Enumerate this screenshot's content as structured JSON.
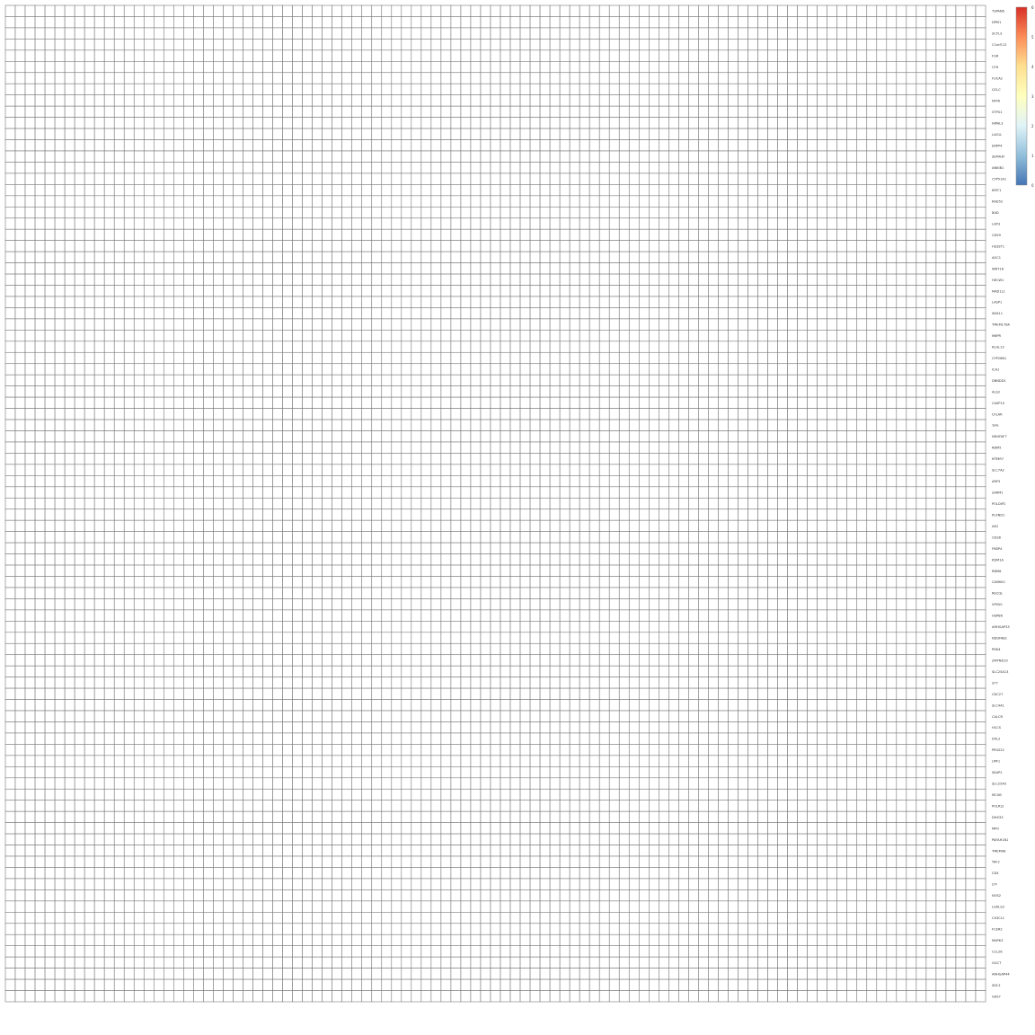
{
  "chart_data": {
    "type": "heatmap",
    "title": "",
    "xlabel": "",
    "ylabel": "",
    "rows": [
      "TSPAN6",
      "DPM1",
      "SCYL3",
      "C1orf112",
      "FGR",
      "CFH",
      "FUCA2",
      "GCLC",
      "NFYA",
      "STPG1",
      "NIPAL3",
      "LAS1L",
      "ENPP4",
      "SEMA3F",
      "ANKIB1",
      "CYP51A1",
      "KRIT1",
      "RAD52",
      "BAD",
      "LAP3",
      "CD99",
      "HS3ST1",
      "AOC1",
      "WNT16",
      "HECW1",
      "MAD1L1",
      "LASP1",
      "SNX11",
      "TMEM176A",
      "M6PR",
      "KLHL13",
      "CYP26B1",
      "ICA1",
      "DBNDD1",
      "ALS2",
      "CASP10",
      "CFLAR",
      "TFPI",
      "NDUFAF7",
      "RBM5",
      "MTMR7",
      "SLC7A2",
      "ARF5",
      "SARM1",
      "POLDIP2",
      "PLXND1",
      "AK2",
      "CD38",
      "FKBP4",
      "KDM1A",
      "RBM6",
      "CAMKK1",
      "RECQL",
      "VPS50",
      "HSPB6",
      "ARHGAP33",
      "NDUFAB1",
      "PDK4",
      "ZMYND10",
      "SLC25A13",
      "ST7",
      "CDC27",
      "SLC4A1",
      "CALCR",
      "HCCS",
      "DVL2",
      "PRSS22",
      "UPF1",
      "SKAP2",
      "SLC25A5",
      "MCUB",
      "POLR2J",
      "DHX33",
      "MPO",
      "PAFAH1B1",
      "TMEM98",
      "YAF2",
      "CD4",
      "LTF",
      "NOS2",
      "LGALS3",
      "CX3CL1",
      "FCER2",
      "MAPK3",
      "CCL26",
      "GGCT",
      "ARHGAP44",
      "SDC1",
      "GAS7"
    ],
    "columns": [],
    "values": [],
    "color_scale": {
      "colors": [
        "#4575b4",
        "#91bfdb",
        "#e0f3f8",
        "#ffffbf",
        "#fee090",
        "#fc8d59",
        "#d73027"
      ],
      "min": 0,
      "max": 6,
      "tick_labels": [
        "0",
        "1",
        "2",
        "3",
        "4",
        "5",
        "6"
      ]
    },
    "grid": true,
    "legend": "top-right"
  }
}
